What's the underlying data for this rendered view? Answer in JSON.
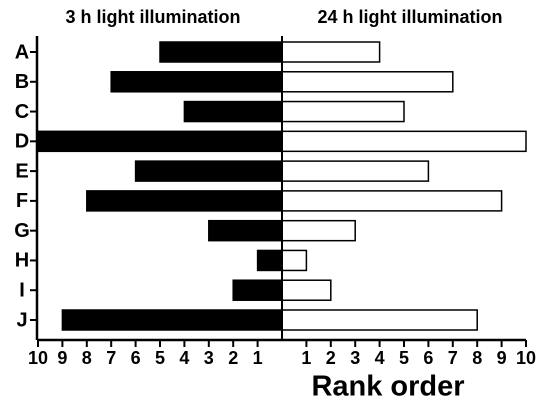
{
  "chart_data": {
    "type": "mirrored-bar",
    "categories": [
      "A",
      "B",
      "C",
      "D",
      "E",
      "F",
      "G",
      "H",
      "I",
      "J"
    ],
    "series": [
      {
        "name": "3 h light illumination",
        "color": "#000000",
        "values": [
          5,
          7,
          4,
          10,
          6,
          8,
          3,
          1,
          2,
          9
        ]
      },
      {
        "name": "24 h light illumination",
        "color": "#ffffff",
        "values": [
          4,
          7,
          5,
          10,
          6,
          9,
          3,
          1,
          2,
          8
        ]
      }
    ],
    "xlabel": "Rank order",
    "xlim": [
      0,
      10
    ],
    "xticks": [
      1,
      2,
      3,
      4,
      5,
      6,
      7,
      8,
      9,
      10
    ]
  }
}
